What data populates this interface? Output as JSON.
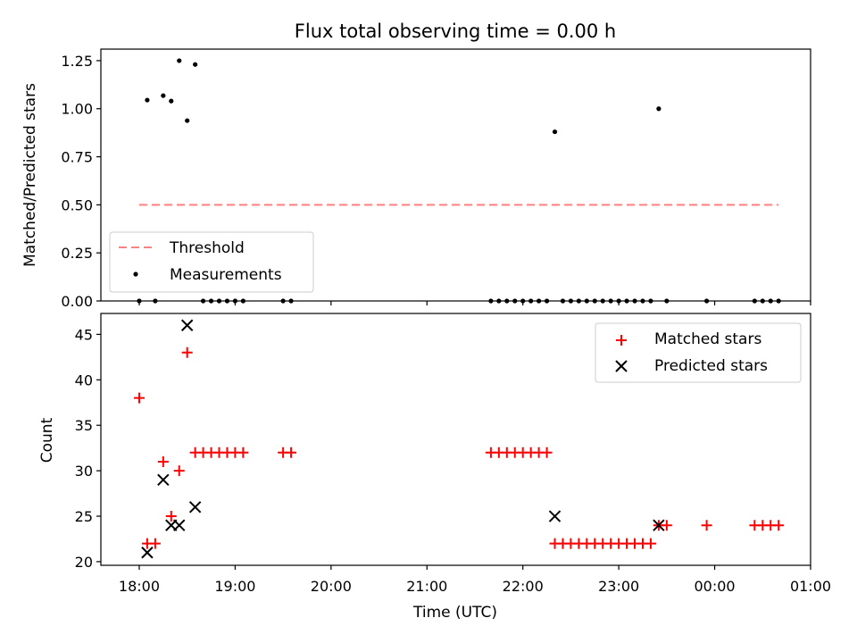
{
  "chart_data": [
    {
      "type": "scatter",
      "title": "Flux total observing time = 0.00 h",
      "xlabel": "",
      "ylabel": "Matched/Predicted stars",
      "ylim": [
        0,
        1.31
      ],
      "yticks": [
        "0.00",
        "0.25",
        "0.50",
        "0.75",
        "1.00",
        "1.25"
      ],
      "grid": false,
      "legend_position": "lower-left",
      "threshold": {
        "name": "Threshold",
        "value": 0.5,
        "x": [
          "18:00",
          "00:40"
        ],
        "color": "#ff8080",
        "style": "dashed"
      },
      "series": [
        {
          "name": "Measurements",
          "color": "#000000",
          "marker": "dot",
          "points": [
            [
              "18:00",
              0.0
            ],
            [
              "18:05",
              1.045
            ],
            [
              "18:10",
              0.0
            ],
            [
              "18:15",
              1.068
            ],
            [
              "18:20",
              1.04
            ],
            [
              "18:25",
              1.25
            ],
            [
              "18:30",
              0.938
            ],
            [
              "18:35",
              1.23
            ],
            [
              "18:40",
              0.0
            ],
            [
              "18:45",
              0.0
            ],
            [
              "18:50",
              0.0
            ],
            [
              "18:55",
              0.0
            ],
            [
              "19:00",
              0.0
            ],
            [
              "19:05",
              0.0
            ],
            [
              "19:30",
              0.0
            ],
            [
              "19:35",
              0.0
            ],
            [
              "21:40",
              0.0
            ],
            [
              "21:45",
              0.0
            ],
            [
              "21:50",
              0.0
            ],
            [
              "21:55",
              0.0
            ],
            [
              "22:00",
              0.0
            ],
            [
              "22:05",
              0.0
            ],
            [
              "22:10",
              0.0
            ],
            [
              "22:15",
              0.0
            ],
            [
              "22:20",
              0.88
            ],
            [
              "22:25",
              0.0
            ],
            [
              "22:30",
              0.0
            ],
            [
              "22:35",
              0.0
            ],
            [
              "22:40",
              0.0
            ],
            [
              "22:45",
              0.0
            ],
            [
              "22:50",
              0.0
            ],
            [
              "22:55",
              0.0
            ],
            [
              "23:00",
              0.0
            ],
            [
              "23:05",
              0.0
            ],
            [
              "23:10",
              0.0
            ],
            [
              "23:15",
              0.0
            ],
            [
              "23:20",
              0.0
            ],
            [
              "23:25",
              1.0
            ],
            [
              "23:30",
              0.0
            ],
            [
              "23:55",
              0.0
            ],
            [
              "00:25",
              0.0
            ],
            [
              "00:30",
              0.0
            ],
            [
              "00:35",
              0.0
            ],
            [
              "00:40",
              0.0
            ]
          ]
        }
      ]
    },
    {
      "type": "scatter",
      "title": "",
      "xlabel": "Time (UTC)",
      "ylabel": "Count",
      "ylim": [
        19.6,
        47.3
      ],
      "yticks": [
        "20",
        "25",
        "30",
        "35",
        "40",
        "45"
      ],
      "xlim": [
        "17:36",
        "01:00"
      ],
      "xticks": [
        "18:00",
        "19:00",
        "20:00",
        "21:00",
        "22:00",
        "23:00",
        "00:00",
        "01:00"
      ],
      "grid": false,
      "legend_position": "top-right",
      "series": [
        {
          "name": "Matched stars",
          "color": "#ff0000",
          "marker": "plus",
          "points": [
            [
              "18:00",
              38
            ],
            [
              "18:05",
              22
            ],
            [
              "18:10",
              22
            ],
            [
              "18:15",
              31
            ],
            [
              "18:20",
              25
            ],
            [
              "18:25",
              30
            ],
            [
              "18:30",
              43
            ],
            [
              "18:35",
              32
            ],
            [
              "18:40",
              32
            ],
            [
              "18:45",
              32
            ],
            [
              "18:50",
              32
            ],
            [
              "18:55",
              32
            ],
            [
              "19:00",
              32
            ],
            [
              "19:05",
              32
            ],
            [
              "19:30",
              32
            ],
            [
              "19:35",
              32
            ],
            [
              "21:40",
              32
            ],
            [
              "21:45",
              32
            ],
            [
              "21:50",
              32
            ],
            [
              "21:55",
              32
            ],
            [
              "22:00",
              32
            ],
            [
              "22:05",
              32
            ],
            [
              "22:10",
              32
            ],
            [
              "22:15",
              32
            ],
            [
              "22:20",
              22
            ],
            [
              "22:25",
              22
            ],
            [
              "22:30",
              22
            ],
            [
              "22:35",
              22
            ],
            [
              "22:40",
              22
            ],
            [
              "22:45",
              22
            ],
            [
              "22:50",
              22
            ],
            [
              "22:55",
              22
            ],
            [
              "23:00",
              22
            ],
            [
              "23:05",
              22
            ],
            [
              "23:10",
              22
            ],
            [
              "23:15",
              22
            ],
            [
              "23:20",
              22
            ],
            [
              "23:25",
              24
            ],
            [
              "23:30",
              24
            ],
            [
              "23:55",
              24
            ],
            [
              "00:25",
              24
            ],
            [
              "00:30",
              24
            ],
            [
              "00:35",
              24
            ],
            [
              "00:40",
              24
            ]
          ]
        },
        {
          "name": "Predicted stars",
          "color": "#000000",
          "marker": "x",
          "points": [
            [
              "18:05",
              21
            ],
            [
              "18:15",
              29
            ],
            [
              "18:20",
              24
            ],
            [
              "18:25",
              24
            ],
            [
              "18:30",
              46
            ],
            [
              "18:35",
              26
            ],
            [
              "22:20",
              25
            ],
            [
              "23:25",
              24
            ]
          ]
        }
      ]
    }
  ]
}
